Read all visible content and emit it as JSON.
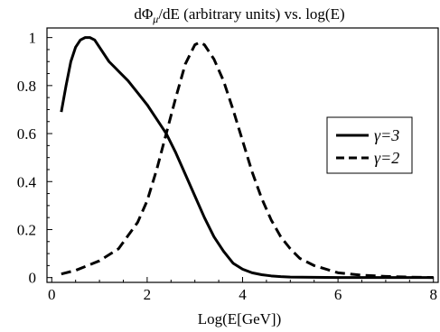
{
  "chart_data": {
    "type": "line",
    "title": "dΦμ/dE (arbitrary units) vs. log(E)",
    "title_parts": {
      "pre": "dΦ",
      "sub": "μ",
      "post": "/dE (arbitrary units) vs. log(E)"
    },
    "xlabel": "Log(E[GeV])",
    "ylabel": "",
    "xlim": [
      -0.1,
      8.1
    ],
    "ylim": [
      -0.02,
      1.04
    ],
    "x_ticks": [
      0,
      2,
      4,
      6,
      8
    ],
    "y_ticks": [
      0,
      0.2,
      0.4,
      0.6,
      0.8,
      1
    ],
    "x_tick_labels": [
      "0",
      "2",
      "4",
      "6",
      "8"
    ],
    "y_tick_labels": [
      "0",
      "0.2",
      "0.4",
      "0.6",
      "0.8",
      "1"
    ],
    "grid": false,
    "legend_position": "right",
    "series": [
      {
        "name": "γ=3",
        "style": "solid",
        "x": [
          0.2,
          0.3,
          0.4,
          0.5,
          0.6,
          0.7,
          0.8,
          0.9,
          1.0,
          1.2,
          1.4,
          1.6,
          1.8,
          2.0,
          2.2,
          2.4,
          2.6,
          2.8,
          3.0,
          3.2,
          3.4,
          3.6,
          3.8,
          4.0,
          4.2,
          4.4,
          4.6,
          4.8,
          5.0,
          5.5,
          6.0,
          7.0,
          8.0
        ],
        "y": [
          0.69,
          0.8,
          0.9,
          0.96,
          0.99,
          1.0,
          1.0,
          0.99,
          0.96,
          0.9,
          0.86,
          0.82,
          0.77,
          0.72,
          0.66,
          0.6,
          0.52,
          0.43,
          0.34,
          0.25,
          0.17,
          0.11,
          0.06,
          0.035,
          0.02,
          0.012,
          0.007,
          0.004,
          0.002,
          0.001,
          0.0,
          0.0,
          0.0
        ]
      },
      {
        "name": "γ=2",
        "style": "dashed",
        "x": [
          0.2,
          0.5,
          1.0,
          1.4,
          1.8,
          2.0,
          2.2,
          2.4,
          2.6,
          2.8,
          3.0,
          3.1,
          3.2,
          3.4,
          3.6,
          3.8,
          4.0,
          4.2,
          4.4,
          4.6,
          4.8,
          5.0,
          5.2,
          5.5,
          6.0,
          6.5,
          7.0,
          7.5,
          8.0
        ],
        "y": [
          0.015,
          0.03,
          0.07,
          0.12,
          0.23,
          0.32,
          0.45,
          0.6,
          0.75,
          0.89,
          0.97,
          0.98,
          0.97,
          0.91,
          0.82,
          0.7,
          0.57,
          0.44,
          0.33,
          0.24,
          0.17,
          0.12,
          0.08,
          0.05,
          0.02,
          0.01,
          0.005,
          0.002,
          0.0
        ]
      }
    ]
  }
}
